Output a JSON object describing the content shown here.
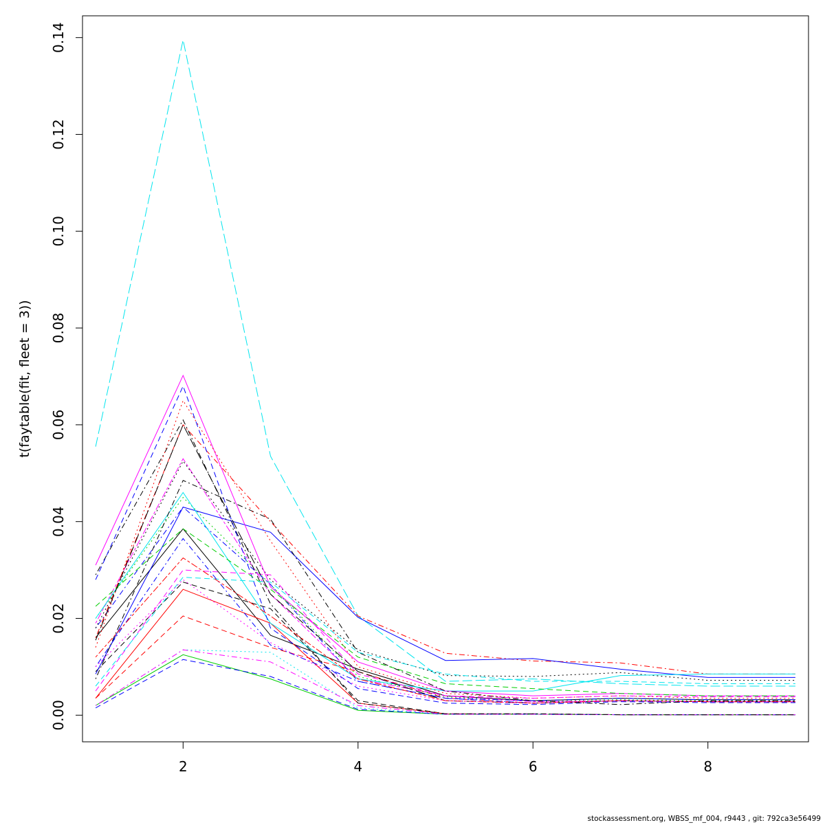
{
  "footer": "stockassessment.org, WBSS_mf_004, r9443 , git: 792ca3e56499",
  "chart_data": {
    "type": "line",
    "title": "",
    "xlabel": "",
    "ylabel": "t(faytable(fit, fleet = 3))",
    "xlim": [
      0.85,
      9.15
    ],
    "ylim": [
      -0.0055,
      0.1445
    ],
    "x": [
      1,
      2,
      3,
      4,
      5,
      6,
      7,
      8,
      9
    ],
    "xticks": [
      2,
      4,
      6,
      8
    ],
    "yticks": [
      0.0,
      0.02,
      0.04,
      0.06,
      0.08,
      0.1,
      0.12,
      0.14
    ],
    "xtick_labels": [
      "2",
      "4",
      "6",
      "8"
    ],
    "ytick_labels": [
      "0.00",
      "0.02",
      "0.04",
      "0.06",
      "0.08",
      "0.10",
      "0.12",
      "0.14"
    ],
    "grid": false,
    "legend": "none",
    "series": [
      {
        "color": "#000000",
        "dash": "solid",
        "values": [
          0.016,
          0.0385,
          0.0165,
          0.0095,
          0.004,
          0.003,
          0.0035,
          0.0032,
          0.0032
        ]
      },
      {
        "color": "#FF0000",
        "dash": "dashed",
        "values": [
          0.0035,
          0.0205,
          0.014,
          0.009,
          0.0035,
          0.0025,
          0.003,
          0.0028,
          0.0028
        ]
      },
      {
        "color": "#00CD00",
        "dash": "dotted",
        "values": [
          0.02,
          0.045,
          0.027,
          0.008,
          0.0038,
          0.003,
          0.0032,
          0.003,
          0.003
        ]
      },
      {
        "color": "#0000FF",
        "dash": "dotdash",
        "values": [
          0.018,
          0.043,
          0.027,
          0.007,
          0.0035,
          0.0025,
          0.003,
          0.0028,
          0.0028
        ]
      },
      {
        "color": "#00E5EE",
        "dash": "longdash",
        "values": [
          0.0555,
          0.1395,
          0.0535,
          0.0205,
          0.007,
          0.0075,
          0.0065,
          0.006,
          0.006
        ]
      },
      {
        "color": "#FF00FF",
        "dash": "twodash",
        "values": [
          0.019,
          0.053,
          0.025,
          0.0075,
          0.004,
          0.0028,
          0.003,
          0.0028,
          0.0028
        ]
      },
      {
        "color": "#000000",
        "dash": "dashed",
        "values": [
          0.009,
          0.0275,
          0.022,
          0.003,
          0.0003,
          0.0003,
          0.0001,
          0.0001,
          0.0001
        ]
      },
      {
        "color": "#FF0000",
        "dash": "solid",
        "values": [
          0.0035,
          0.026,
          0.019,
          0.0025,
          0.0003,
          0.0002,
          0.0001,
          0.0001,
          0.0001
        ]
      },
      {
        "color": "#00CD00",
        "dash": "solid",
        "values": [
          0.002,
          0.0125,
          0.0075,
          0.001,
          0.0002,
          0.0002,
          0.0001,
          0.0001,
          0.0001
        ]
      },
      {
        "color": "#0000FF",
        "dash": "dashed",
        "values": [
          0.0015,
          0.0115,
          0.008,
          0.0012,
          0.0002,
          0.0002,
          0.0001,
          0.0001,
          0.0001
        ]
      },
      {
        "color": "#00E5EE",
        "dash": "dotted",
        "values": [
          0.002,
          0.0135,
          0.013,
          0.0015,
          0.0002,
          0.0002,
          0.0001,
          0.0001,
          0.0001
        ]
      },
      {
        "color": "#FF00FF",
        "dash": "dotdash",
        "values": [
          0.002,
          0.0135,
          0.011,
          0.002,
          0.0002,
          0.0002,
          0.0001,
          0.0001,
          0.0001
        ]
      },
      {
        "color": "#000000",
        "dash": "dotdash",
        "values": [
          0.029,
          0.061,
          0.023,
          0.0025,
          0.0003,
          0.0003,
          0.0001,
          0.0001,
          0.0001
        ]
      },
      {
        "color": "#FF0000",
        "dash": "dotdash",
        "values": [
          0.016,
          0.06,
          0.04,
          0.0205,
          0.0128,
          0.0112,
          0.0108,
          0.0085,
          0.0085
        ]
      },
      {
        "color": "#0000FF",
        "dash": "solid",
        "values": [
          0.0085,
          0.043,
          0.0378,
          0.0202,
          0.0113,
          0.0117,
          0.0095,
          0.0078,
          0.0078
        ]
      },
      {
        "color": "#000000",
        "dash": "dotted",
        "values": [
          0.018,
          0.0525,
          0.028,
          0.0135,
          0.0082,
          0.008,
          0.0088,
          0.0072,
          0.0072
        ]
      },
      {
        "color": "#00E5EE",
        "dash": "solid",
        "values": [
          0.02,
          0.046,
          0.019,
          0.0075,
          0.005,
          0.005,
          0.0082,
          0.0085,
          0.0085
        ]
      },
      {
        "color": "#FF00FF",
        "dash": "solid",
        "values": [
          0.031,
          0.0702,
          0.0265,
          0.011,
          0.005,
          0.004,
          0.0045,
          0.004,
          0.004
        ]
      },
      {
        "color": "#0000FF",
        "dash": "dashed",
        "values": [
          0.028,
          0.068,
          0.018,
          0.0055,
          0.0025,
          0.0022,
          0.0028,
          0.0026,
          0.0026
        ]
      },
      {
        "color": "#000000",
        "dash": "dotdash",
        "values": [
          0.0075,
          0.0485,
          0.0405,
          0.013,
          0.005,
          0.003,
          0.0022,
          0.003,
          0.003
        ]
      },
      {
        "color": "#FF0000",
        "dash": "dotted",
        "values": [
          0.014,
          0.065,
          0.036,
          0.01,
          0.0045,
          0.0035,
          0.004,
          0.0035,
          0.0035
        ]
      },
      {
        "color": "#00CD00",
        "dash": "dashed",
        "values": [
          0.0225,
          0.0385,
          0.026,
          0.012,
          0.0065,
          0.0055,
          0.0045,
          0.004,
          0.004
        ]
      },
      {
        "color": "#FF00FF",
        "dash": "dashed",
        "values": [
          0.005,
          0.03,
          0.029,
          0.0085,
          0.004,
          0.0035,
          0.004,
          0.0038,
          0.0038
        ]
      },
      {
        "color": "#00E5EE",
        "dash": "dashed",
        "values": [
          0.006,
          0.0285,
          0.0275,
          0.013,
          0.0085,
          0.007,
          0.007,
          0.0065,
          0.0065
        ]
      },
      {
        "color": "#0000FF",
        "dash": "dotdash",
        "values": [
          0.01,
          0.0365,
          0.0145,
          0.007,
          0.0035,
          0.003,
          0.0035,
          0.0032,
          0.0032
        ]
      },
      {
        "color": "#000000",
        "dash": "longdash",
        "values": [
          0.0155,
          0.06,
          0.025,
          0.009,
          0.003,
          0.0025,
          0.003,
          0.0028,
          0.0028
        ]
      },
      {
        "color": "#FF0000",
        "dash": "twodash",
        "values": [
          0.012,
          0.0325,
          0.0205,
          0.0075,
          0.003,
          0.0025,
          0.003,
          0.0028,
          0.0028
        ]
      },
      {
        "color": "#FF00FF",
        "dash": "dotted",
        "values": [
          0.01,
          0.028,
          0.015,
          0.006,
          0.003,
          0.0025,
          0.003,
          0.0028,
          0.0028
        ]
      }
    ]
  }
}
